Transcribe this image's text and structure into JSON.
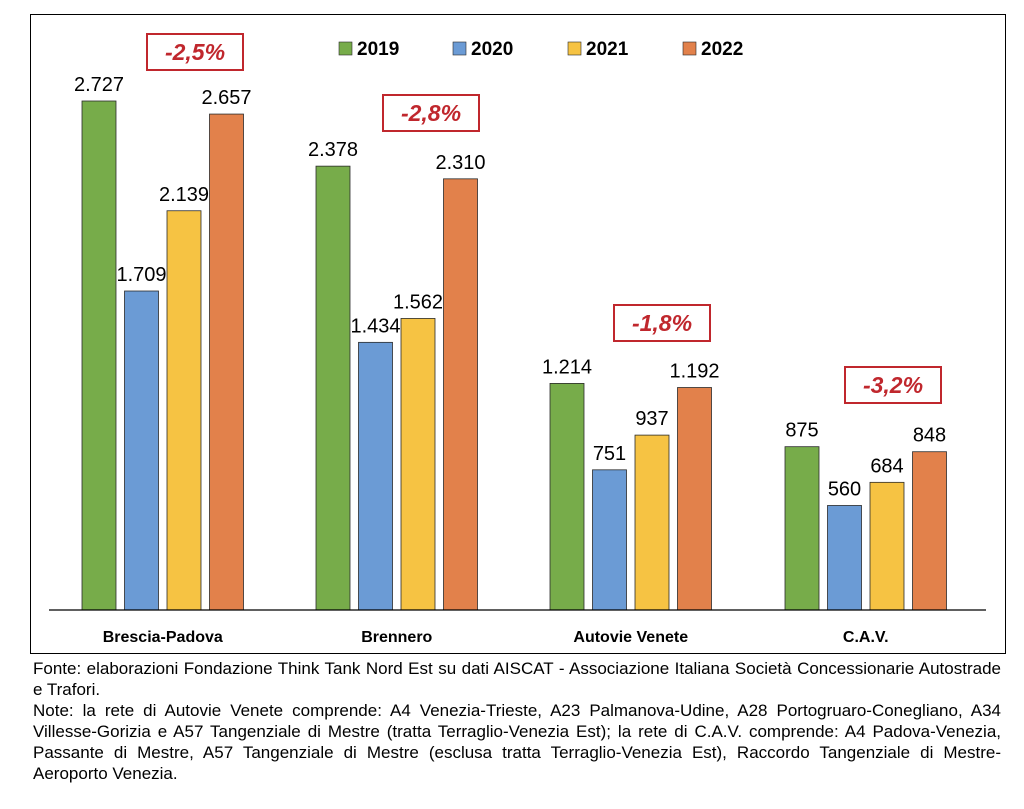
{
  "chart_data": {
    "type": "bar",
    "categories": [
      "Brescia-Padova",
      "Brennero",
      "Autovie Venete",
      "C.A.V."
    ],
    "series": [
      {
        "name": "2019",
        "color": "#77ac4a",
        "values": [
          2727,
          2378,
          1214,
          875
        ],
        "labels": [
          "2.727",
          "2.378",
          "1.214",
          "875"
        ]
      },
      {
        "name": "2020",
        "color": "#6b9bd5",
        "values": [
          1709,
          1434,
          751,
          560
        ],
        "labels": [
          "1.709",
          "1.434",
          "751",
          "560"
        ]
      },
      {
        "name": "2021",
        "color": "#f6c343",
        "values": [
          2139,
          1562,
          937,
          684
        ],
        "labels": [
          "2.139",
          "1.562",
          "937",
          "684"
        ]
      },
      {
        "name": "2022",
        "color": "#e2814b",
        "values": [
          2657,
          2310,
          1192,
          848
        ],
        "labels": [
          "2.657",
          "2.310",
          "1.192",
          "848"
        ]
      }
    ],
    "annotations": [
      "-2,5%",
      "-2,8%",
      "-1,8%",
      "-3,2%"
    ],
    "annotation_color": "#c0272d",
    "ylim": [
      0,
      2727
    ],
    "grid": false,
    "legend_position": "top"
  },
  "notes": {
    "source": "Fonte: elaborazioni Fondazione Think Tank Nord Est su dati AISCAT - Associazione Italiana Società Concessionarie Autostrade e Trafori.",
    "details": "Note: la rete di Autovie Venete comprende: A4 Venezia-Trieste, A23 Palmanova-Udine, A28 Portogruaro-Conegliano, A34 Villesse-Gorizia e A57 Tangenziale di Mestre (tratta Terraglio-Venezia Est); la rete di C.A.V. comprende: A4 Padova-Venezia, Passante di Mestre, A57 Tangenziale di Mestre (esclusa tratta Terraglio-Venezia Est), Raccordo Tangenziale di Mestre-Aeroporto Venezia."
  }
}
